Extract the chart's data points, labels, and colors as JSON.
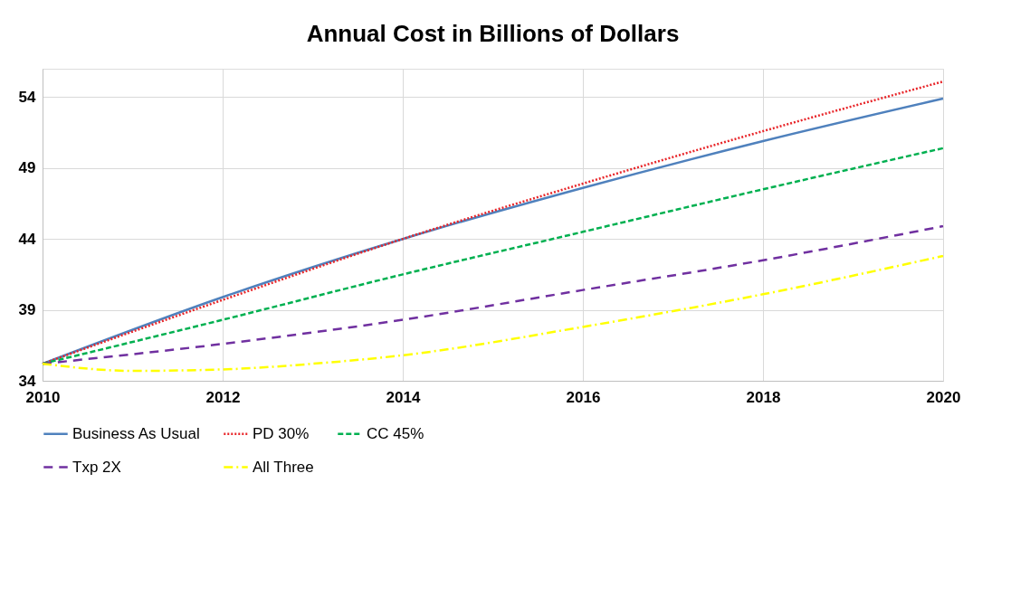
{
  "chart_data": {
    "type": "line",
    "title": "Annual Cost in Billions of Dollars",
    "x": [
      2010,
      2012,
      2014,
      2016,
      2018,
      2020
    ],
    "xlim": [
      2010,
      2020
    ],
    "xticks": [
      2010,
      2012,
      2014,
      2016,
      2018,
      2020
    ],
    "ylim": [
      34,
      56
    ],
    "yticks": [
      34,
      39,
      44,
      49,
      54
    ],
    "grid": true,
    "legend": "bottom",
    "marker": "none",
    "series": [
      {
        "name": "Business As Usual",
        "color": "#4f81bd",
        "line_style": "solid",
        "values": [
          35.2,
          39.9,
          44.0,
          47.6,
          50.9,
          53.9
        ]
      },
      {
        "name": "PD 30%",
        "color": "#e8262a",
        "line_style": "dotted",
        "values": [
          35.2,
          39.7,
          44.0,
          47.9,
          51.6,
          55.1
        ]
      },
      {
        "name": "CC 45%",
        "color": "#00b050",
        "line_style": "dashed",
        "values": [
          35.2,
          38.3,
          41.5,
          44.5,
          47.5,
          50.4
        ]
      },
      {
        "name": "Txp 2X",
        "color": "#7030a0",
        "line_style": "longdash",
        "values": [
          35.2,
          36.6,
          38.3,
          40.4,
          42.5,
          44.9
        ]
      },
      {
        "name": "All Three",
        "color": "#ffff00",
        "line_style": "dashdot",
        "x": [
          2010,
          2011,
          2012,
          2013,
          2014,
          2016,
          2018,
          2020
        ],
        "values": [
          35.2,
          34.7,
          34.8,
          35.2,
          35.8,
          37.8,
          40.1,
          42.8
        ]
      }
    ]
  }
}
